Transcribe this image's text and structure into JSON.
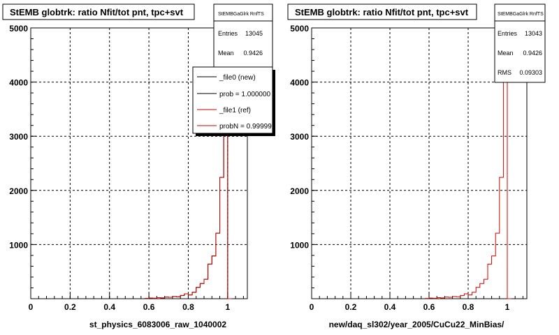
{
  "chart_data": [
    {
      "type": "histogram",
      "title": "StEMB globtrk: ratio Nfit/tot pnt, tpc+svt",
      "xlabel": "st_physics_6083006_raw_1040002",
      "xlim": [
        0,
        1.1
      ],
      "ylim": [
        0,
        5000
      ],
      "xticks": [
        "0",
        "0.2",
        "0.4",
        "0.6",
        "0.8",
        "1"
      ],
      "yticks": [
        "1000",
        "2000",
        "3000",
        "4000",
        "5000"
      ],
      "grid": true,
      "stats": {
        "name": "StEMBGaGlrk RnfTS",
        "entries_label": "Entries",
        "entries": "13045",
        "mean_label": "Mean",
        "mean": "0.9426"
      },
      "legend": {
        "position": "top-right",
        "entries": [
          {
            "label": "_file0 (new)",
            "color": "#000000"
          },
          {
            "label": "prob = 1.000000",
            "color": "#000000"
          },
          {
            "label": "_file1 (ref)",
            "color": "#cc0000"
          },
          {
            "label": "probN = 0.99999",
            "color": "#cc0000"
          }
        ]
      },
      "series": [
        {
          "name": "_file0 (new)",
          "color": "#000000",
          "bins": [
            [
              0.58,
              0.6,
              5
            ],
            [
              0.6,
              0.62,
              12
            ],
            [
              0.62,
              0.64,
              8
            ],
            [
              0.64,
              0.66,
              20
            ],
            [
              0.66,
              0.68,
              15
            ],
            [
              0.68,
              0.7,
              30
            ],
            [
              0.7,
              0.72,
              25
            ],
            [
              0.72,
              0.74,
              40
            ],
            [
              0.74,
              0.76,
              35
            ],
            [
              0.76,
              0.78,
              60
            ],
            [
              0.78,
              0.8,
              90
            ],
            [
              0.8,
              0.82,
              70
            ],
            [
              0.82,
              0.84,
              120
            ],
            [
              0.84,
              0.86,
              210
            ],
            [
              0.86,
              0.88,
              280
            ],
            [
              0.88,
              0.9,
              360
            ],
            [
              0.9,
              0.92,
              640
            ],
            [
              0.92,
              0.94,
              790
            ],
            [
              0.94,
              0.96,
              1210
            ],
            [
              0.96,
              0.98,
              2240
            ],
            [
              0.98,
              1.0,
              4950
            ],
            [
              1.0,
              1.02,
              0
            ]
          ]
        },
        {
          "name": "_file1 (ref)",
          "color": "#cc0000",
          "bins": [
            [
              0.58,
              0.6,
              5
            ],
            [
              0.6,
              0.62,
              12
            ],
            [
              0.62,
              0.64,
              8
            ],
            [
              0.64,
              0.66,
              20
            ],
            [
              0.66,
              0.68,
              15
            ],
            [
              0.68,
              0.7,
              30
            ],
            [
              0.7,
              0.72,
              25
            ],
            [
              0.72,
              0.74,
              40
            ],
            [
              0.74,
              0.76,
              35
            ],
            [
              0.76,
              0.78,
              60
            ],
            [
              0.78,
              0.8,
              90
            ],
            [
              0.8,
              0.82,
              70
            ],
            [
              0.82,
              0.84,
              120
            ],
            [
              0.84,
              0.86,
              210
            ],
            [
              0.86,
              0.88,
              280
            ],
            [
              0.88,
              0.9,
              360
            ],
            [
              0.9,
              0.92,
              640
            ],
            [
              0.92,
              0.94,
              790
            ],
            [
              0.94,
              0.96,
              1210
            ],
            [
              0.96,
              0.98,
              2240
            ],
            [
              0.98,
              1.0,
              4950
            ],
            [
              1.0,
              1.02,
              0
            ]
          ]
        }
      ]
    },
    {
      "type": "histogram",
      "title": "StEMB globtrk: ratio Nfit/tot pnt, tpc+svt",
      "xlabel": "new/daq_sl302/year_2005/CuCu22_MinBias/",
      "xlim": [
        0,
        1.1
      ],
      "ylim": [
        0,
        5000
      ],
      "xticks": [
        "0",
        "0.2",
        "0.4",
        "0.6",
        "0.8",
        "1"
      ],
      "yticks": [
        "1000",
        "2000",
        "3000",
        "4000",
        "5000"
      ],
      "grid": true,
      "stats": {
        "name": "StEMBGaGlrk RnfTS",
        "entries_label": "Entries",
        "entries": "13043",
        "mean_label": "Mean",
        "mean": "0.9426",
        "rms_label": "RMS",
        "rms": "0.09303"
      },
      "series": [
        {
          "name": "",
          "color": "#cc0000",
          "bins": [
            [
              0.58,
              0.6,
              5
            ],
            [
              0.6,
              0.62,
              12
            ],
            [
              0.62,
              0.64,
              8
            ],
            [
              0.64,
              0.66,
              20
            ],
            [
              0.66,
              0.68,
              15
            ],
            [
              0.68,
              0.7,
              30
            ],
            [
              0.7,
              0.72,
              25
            ],
            [
              0.72,
              0.74,
              40
            ],
            [
              0.74,
              0.76,
              35
            ],
            [
              0.76,
              0.78,
              60
            ],
            [
              0.78,
              0.8,
              90
            ],
            [
              0.8,
              0.82,
              70
            ],
            [
              0.82,
              0.84,
              120
            ],
            [
              0.84,
              0.86,
              210
            ],
            [
              0.86,
              0.88,
              280
            ],
            [
              0.88,
              0.9,
              360
            ],
            [
              0.9,
              0.92,
              640
            ],
            [
              0.92,
              0.94,
              790
            ],
            [
              0.94,
              0.96,
              1210
            ],
            [
              0.96,
              0.98,
              2240
            ],
            [
              0.98,
              1.0,
              4950
            ],
            [
              1.0,
              1.02,
              0
            ]
          ]
        }
      ]
    }
  ]
}
